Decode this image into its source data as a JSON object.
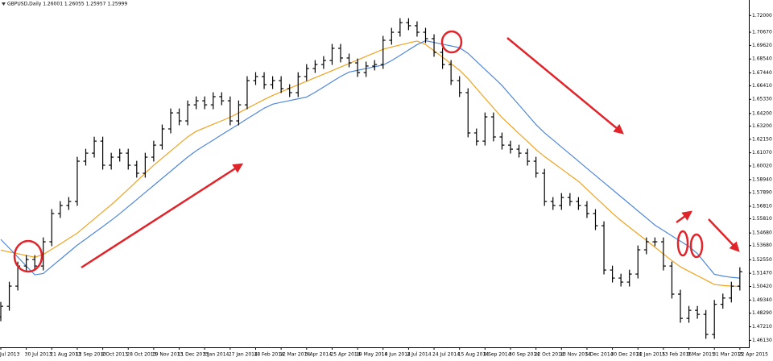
{
  "chart_data": {
    "type": "ohlc",
    "title": "GBPUSD,Daily  1.26001 1.26055 1.25957 1.25999",
    "categories": [
      "Jul 2013",
      null,
      null,
      "30 Jul 2013",
      null,
      null,
      "21 Aug 2013",
      null,
      null,
      "12 Sep 2013",
      null,
      null,
      "4 Oct 2013",
      null,
      null,
      "28 Oct 2013",
      null,
      null,
      "19 Nov 2013",
      null,
      null,
      "11 Dec 2013",
      null,
      null,
      "3 Jan 2014",
      null,
      null,
      "27 Jan 2014",
      null,
      null,
      "18 Feb 2014",
      null,
      null,
      "12 Mar 2014",
      null,
      null,
      "3 Apr 2014",
      null,
      null,
      "25 Apr 2014",
      null,
      null,
      "19 May 2014",
      null,
      null,
      "10 Jun 2014",
      null,
      null,
      "2 Jul 2014",
      null,
      null,
      "24 Jul 2014",
      null,
      null,
      "15 Aug 2014",
      null,
      null,
      "8 Sep 2014",
      null,
      null,
      "30 Sep 2014",
      null,
      null,
      "22 Oct 2014",
      null,
      null,
      "13 Nov 2014",
      null,
      null,
      "5 Dec 2014",
      null,
      null,
      "30 Dec 2014",
      null,
      null,
      "22 Jan 2015",
      null,
      null,
      "13 Feb 2015",
      null,
      null,
      "9 Mar 2015",
      null,
      null,
      "31 Mar 2015",
      null,
      null,
      "22 Apr 2015"
    ],
    "open": [
      1.48,
      1.4884,
      1.5045,
      1.5205,
      1.5257,
      1.5205,
      1.5398,
      1.5623,
      1.5687,
      1.5719,
      1.604,
      1.6104,
      1.62,
      1.6008,
      1.6072,
      1.6104,
      1.6008,
      1.5944,
      1.6072,
      1.6168,
      1.6297,
      1.6425,
      1.6361,
      1.6489,
      1.6521,
      1.6489,
      1.6554,
      1.6521,
      1.6361,
      1.6489,
      1.6682,
      1.6714,
      1.665,
      1.6682,
      1.6618,
      1.6586,
      1.6714,
      1.6778,
      1.681,
      1.6842,
      1.6939,
      1.6862,
      1.6823,
      1.6746,
      1.6798,
      1.681,
      1.7003,
      1.7067,
      1.7144,
      1.7119,
      1.7067,
      1.7016,
      1.6907,
      1.681,
      1.6682,
      1.6586,
      1.6265,
      1.62,
      1.6393,
      1.6233,
      1.6168,
      1.6136,
      1.6104,
      1.604,
      1.5944,
      1.5719,
      1.5687,
      1.5751,
      1.5719,
      1.5687,
      1.5623,
      1.5526,
      1.5173,
      1.5109,
      1.5077,
      1.5141,
      1.5334,
      1.5398,
      1.5398,
      1.5205,
      1.4981,
      1.4788,
      1.4852,
      1.482,
      1.466,
      1.49,
      1.495,
      1.5045
    ],
    "high": [
      1.4919,
      1.508,
      1.524,
      1.5292,
      1.5292,
      1.5433,
      1.5658,
      1.5722,
      1.5754,
      1.6075,
      1.6139,
      1.6235,
      1.6235,
      1.6107,
      1.6139,
      1.6139,
      1.6043,
      1.6107,
      1.6203,
      1.6332,
      1.646,
      1.646,
      1.6524,
      1.6556,
      1.6556,
      1.6589,
      1.6589,
      1.6556,
      1.6524,
      1.6717,
      1.6749,
      1.6749,
      1.6717,
      1.6717,
      1.6653,
      1.6749,
      1.6813,
      1.6845,
      1.6877,
      1.6974,
      1.6974,
      1.6897,
      1.6858,
      1.6833,
      1.6845,
      1.7038,
      1.7102,
      1.7179,
      1.7179,
      1.7154,
      1.7102,
      1.7051,
      1.6942,
      1.6845,
      1.6717,
      1.6621,
      1.63,
      1.6428,
      1.6428,
      1.6268,
      1.6203,
      1.6171,
      1.6139,
      1.6075,
      1.5979,
      1.5754,
      1.5786,
      1.5786,
      1.5754,
      1.5722,
      1.5658,
      1.5561,
      1.5208,
      1.5144,
      1.5176,
      1.5369,
      1.5433,
      1.5433,
      1.5433,
      1.524,
      1.5016,
      1.4887,
      1.4887,
      1.4855,
      1.4935,
      1.4985,
      1.508,
      1.5195
    ],
    "low": [
      1.4765,
      1.4849,
      1.501,
      1.517,
      1.517,
      1.517,
      1.5363,
      1.5588,
      1.5652,
      1.5684,
      1.6005,
      1.6069,
      1.5973,
      1.5973,
      1.6037,
      1.5973,
      1.5909,
      1.5909,
      1.6037,
      1.6133,
      1.6262,
      1.6326,
      1.6326,
      1.6454,
      1.6454,
      1.6454,
      1.6486,
      1.6326,
      1.6326,
      1.6454,
      1.6647,
      1.6615,
      1.6615,
      1.6583,
      1.6551,
      1.6551,
      1.6679,
      1.6743,
      1.6775,
      1.6807,
      1.6827,
      1.6788,
      1.6711,
      1.6711,
      1.6763,
      1.6775,
      1.6968,
      1.7032,
      1.7084,
      1.7032,
      1.6981,
      1.6872,
      1.6775,
      1.6647,
      1.6551,
      1.623,
      1.6165,
      1.6165,
      1.6198,
      1.6133,
      1.6101,
      1.6069,
      1.6005,
      1.5909,
      1.5684,
      1.5652,
      1.5652,
      1.5684,
      1.5652,
      1.5588,
      1.5491,
      1.5138,
      1.5074,
      1.5042,
      1.5042,
      1.5106,
      1.5299,
      1.5363,
      1.517,
      1.4946,
      1.4753,
      1.4753,
      1.4785,
      1.4625,
      1.4625,
      1.4865,
      1.4915,
      1.501
    ],
    "close": [
      1.4884,
      1.5045,
      1.5205,
      1.5257,
      1.5205,
      1.5398,
      1.5623,
      1.5687,
      1.5719,
      1.604,
      1.6104,
      1.62,
      1.6008,
      1.6072,
      1.6104,
      1.6008,
      1.5944,
      1.6072,
      1.6168,
      1.6297,
      1.6425,
      1.6361,
      1.6489,
      1.6521,
      1.6489,
      1.6554,
      1.6521,
      1.6361,
      1.6489,
      1.6682,
      1.6714,
      1.665,
      1.6682,
      1.6618,
      1.6586,
      1.6714,
      1.6778,
      1.681,
      1.6842,
      1.6939,
      1.6862,
      1.6823,
      1.6746,
      1.6798,
      1.681,
      1.7003,
      1.7067,
      1.7144,
      1.7119,
      1.7067,
      1.7016,
      1.6907,
      1.681,
      1.6682,
      1.6586,
      1.6265,
      1.62,
      1.6393,
      1.6233,
      1.6168,
      1.6136,
      1.6104,
      1.604,
      1.5944,
      1.5719,
      1.5687,
      1.5751,
      1.5719,
      1.5687,
      1.5623,
      1.5526,
      1.5173,
      1.5109,
      1.5077,
      1.5141,
      1.5334,
      1.5398,
      1.5398,
      1.5205,
      1.4981,
      1.4788,
      1.4852,
      1.482,
      1.466,
      1.49,
      1.495,
      1.5045,
      1.516
    ],
    "bar_color": "#000000",
    "overlays": [
      {
        "color": "#f0a21e",
        "values": [
          1.5331,
          1.5317,
          1.5303,
          1.5289,
          1.5275,
          1.5297,
          1.5339,
          1.5381,
          1.5424,
          1.5467,
          1.5524,
          1.558,
          1.5637,
          1.5693,
          1.5754,
          1.5817,
          1.5881,
          1.5944,
          1.6008,
          1.6065,
          1.6121,
          1.6178,
          1.6234,
          1.6278,
          1.6306,
          1.6334,
          1.6362,
          1.639,
          1.6425,
          1.6461,
          1.6496,
          1.6531,
          1.6564,
          1.6592,
          1.6621,
          1.6649,
          1.6677,
          1.6705,
          1.6733,
          1.6761,
          1.679,
          1.6818,
          1.6846,
          1.6875,
          1.6903,
          1.6931,
          1.695,
          1.6966,
          1.6982,
          1.6997,
          1.697,
          1.6919,
          1.6868,
          1.6817,
          1.6765,
          1.6697,
          1.6619,
          1.6541,
          1.6464,
          1.6387,
          1.6324,
          1.626,
          1.6197,
          1.6133,
          1.6077,
          1.6028,
          1.5979,
          1.5929,
          1.588,
          1.5816,
          1.5753,
          1.5689,
          1.5626,
          1.5567,
          1.5514,
          1.5461,
          1.5408,
          1.5355,
          1.5301,
          1.5248,
          1.5199,
          1.5163,
          1.5128,
          1.5093,
          1.5058,
          1.505,
          1.5045,
          1.5042
        ]
      },
      {
        "color": "#4f87d9",
        "values": [
          1.5417,
          1.5347,
          1.5276,
          1.5205,
          1.5135,
          1.5145,
          1.5202,
          1.5258,
          1.5315,
          1.5371,
          1.542,
          1.547,
          1.5519,
          1.5569,
          1.5622,
          1.5678,
          1.5734,
          1.5791,
          1.5847,
          1.5904,
          1.596,
          1.6017,
          1.6073,
          1.6123,
          1.6166,
          1.6208,
          1.6251,
          1.6293,
          1.6335,
          1.6378,
          1.642,
          1.6462,
          1.6494,
          1.6509,
          1.6523,
          1.6537,
          1.6551,
          1.6589,
          1.6631,
          1.6673,
          1.6715,
          1.675,
          1.6764,
          1.6778,
          1.6792,
          1.6806,
          1.6841,
          1.6883,
          1.6926,
          1.6968,
          1.7,
          1.6986,
          1.6972,
          1.6958,
          1.6944,
          1.6899,
          1.6835,
          1.6771,
          1.6708,
          1.6643,
          1.6565,
          1.6488,
          1.641,
          1.6332,
          1.6266,
          1.621,
          1.6153,
          1.6097,
          1.604,
          1.5983,
          1.5927,
          1.587,
          1.5814,
          1.5757,
          1.5701,
          1.5644,
          1.5588,
          1.5531,
          1.5488,
          1.5445,
          1.5403,
          1.5361,
          1.5304,
          1.5221,
          1.5139,
          1.5125,
          1.5115,
          1.5109
        ]
      }
    ],
    "ylim": [
      1.4564,
      1.7324
    ],
    "yticks": [
      {
        "value": 1.72,
        "label": "1.72000"
      },
      {
        "value": 1.7067,
        "label": "1.70670"
      },
      {
        "value": 1.6962,
        "label": "1.69620"
      },
      {
        "value": 1.6854,
        "label": "1.68540"
      },
      {
        "value": 1.6744,
        "label": "1.67440"
      },
      {
        "value": 1.6641,
        "label": "1.66410"
      },
      {
        "value": 1.6533,
        "label": "1.65330"
      },
      {
        "value": 1.642,
        "label": "1.64200"
      },
      {
        "value": 1.632,
        "label": "1.63200"
      },
      {
        "value": 1.6215,
        "label": "1.62150"
      },
      {
        "value": 1.6107,
        "label": "1.61070"
      },
      {
        "value": 1.6002,
        "label": "1.60020"
      },
      {
        "value": 1.5894,
        "label": "1.58940"
      },
      {
        "value": 1.5789,
        "label": "1.57890"
      },
      {
        "value": 1.5681,
        "label": "1.56810"
      },
      {
        "value": 1.5581,
        "label": "1.55810"
      },
      {
        "value": 1.5468,
        "label": "1.54680"
      },
      {
        "value": 1.5368,
        "label": "1.53680"
      },
      {
        "value": 1.5255,
        "label": "1.52550"
      },
      {
        "value": 1.5147,
        "label": "1.51470"
      },
      {
        "value": 1.5042,
        "label": "1.50420"
      },
      {
        "value": 1.4934,
        "label": "1.49340"
      },
      {
        "value": 1.4829,
        "label": "1.48290"
      },
      {
        "value": 1.4721,
        "label": "1.47210"
      },
      {
        "value": 1.4613,
        "label": "1.46130"
      }
    ],
    "grid": false
  }
}
